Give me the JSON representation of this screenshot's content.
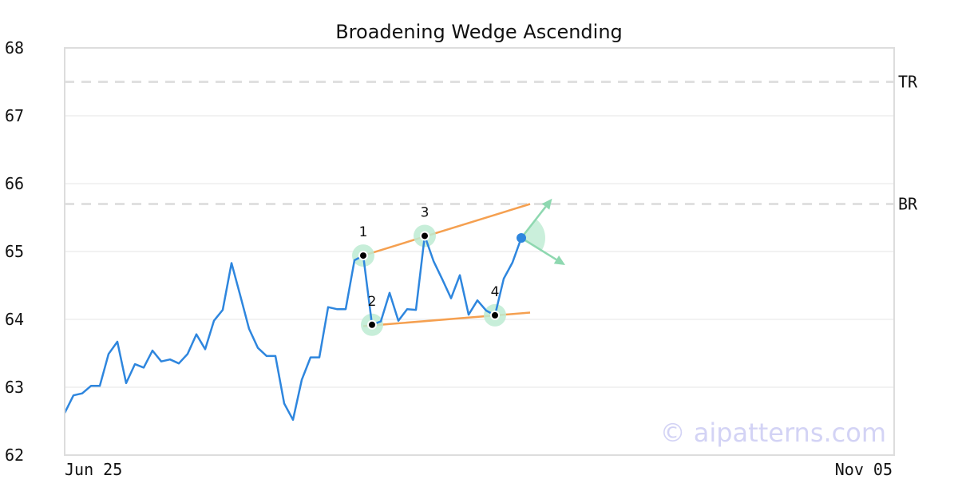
{
  "chart_data": {
    "type": "line",
    "title": "Broadening Wedge Ascending",
    "xlabel": "",
    "ylabel": "",
    "ylim": [
      62,
      68
    ],
    "yticks": [
      62,
      63,
      64,
      65,
      66,
      67,
      68
    ],
    "xtick_labels": [
      "Jun 25",
      "Nov 05"
    ],
    "grid": true,
    "watermark": "© aipatterns.com",
    "series": [
      {
        "color": "#2e86de",
        "values": [
          62.62,
          62.88,
          62.91,
          63.02,
          63.02,
          63.49,
          63.67,
          63.06,
          63.34,
          63.29,
          63.54,
          63.38,
          63.41,
          63.35,
          63.49,
          63.78,
          63.56,
          63.98,
          64.14,
          64.83,
          64.35,
          63.86,
          63.58,
          63.46,
          63.46,
          62.76,
          62.52,
          63.11,
          63.44,
          63.44,
          64.18,
          64.15,
          64.15,
          64.87,
          64.94,
          63.92,
          63.97,
          64.39,
          63.98,
          64.15,
          64.14,
          65.23,
          64.86,
          64.59,
          64.31,
          64.65,
          64.07,
          64.28,
          64.13,
          64.06,
          64.6,
          64.84,
          65.2
        ]
      }
    ],
    "x_total_steps": 95,
    "reference_lines": [
      {
        "label": "TR",
        "y": 67.5,
        "style": "dashed",
        "color": "#e0e0e0"
      },
      {
        "label": "BR",
        "y": 65.7,
        "style": "dashed",
        "color": "#e0e0e0"
      }
    ],
    "pattern_points": [
      {
        "label": "1",
        "x": 34,
        "y": 64.94
      },
      {
        "label": "2",
        "x": 35,
        "y": 63.92
      },
      {
        "label": "3",
        "x": 41,
        "y": 65.23
      },
      {
        "label": "4",
        "x": 49,
        "y": 64.06
      }
    ],
    "trend_lines": [
      {
        "name": "upper",
        "color": "#f5a050",
        "from": {
          "x": 34,
          "y": 64.94
        },
        "to": {
          "x": 53,
          "y": 65.7
        }
      },
      {
        "name": "lower",
        "color": "#f5a050",
        "from": {
          "x": 34,
          "y": 63.9
        },
        "to": {
          "x": 53,
          "y": 64.1
        }
      }
    ],
    "last_point": {
      "x": 52,
      "y": 65.2,
      "color": "#2e86de"
    },
    "projection_arrows": [
      {
        "direction": "up",
        "to": {
          "x": 55.5,
          "y": 65.78
        },
        "color": "#8ed8b0"
      },
      {
        "direction": "down",
        "to": {
          "x": 57,
          "y": 64.8
        },
        "color": "#8ed8b0"
      }
    ]
  }
}
